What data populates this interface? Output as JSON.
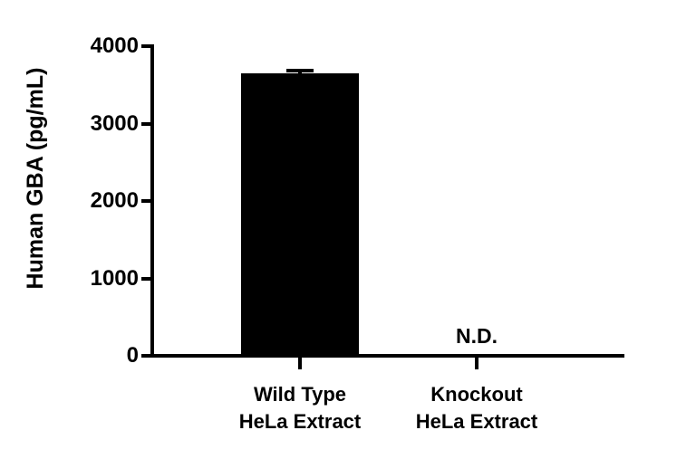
{
  "figure": {
    "background": "#ffffff",
    "ink_color": "#000000"
  },
  "chart_data": {
    "type": "bar",
    "title": "",
    "ylabel": "Human GBA (pg/mL)",
    "xlabel": "",
    "categories": [
      "Wild Type HeLa Extract",
      "Knockout HeLa Extract"
    ],
    "category_lines": [
      [
        "Wild Type",
        "HeLa Extract"
      ],
      [
        "Knockout",
        "HeLa Extract"
      ]
    ],
    "values": [
      3650,
      null
    ],
    "error_plus": [
      40,
      null
    ],
    "annotations": [
      null,
      "N.D."
    ],
    "ylim": [
      0,
      4000
    ],
    "yticks": [
      0,
      1000,
      2000,
      3000,
      4000
    ],
    "ytick_labels": [
      "0",
      "1000",
      "2000",
      "3000",
      "4000"
    ],
    "bar_color": "#000000",
    "grid": false,
    "legend": null
  }
}
